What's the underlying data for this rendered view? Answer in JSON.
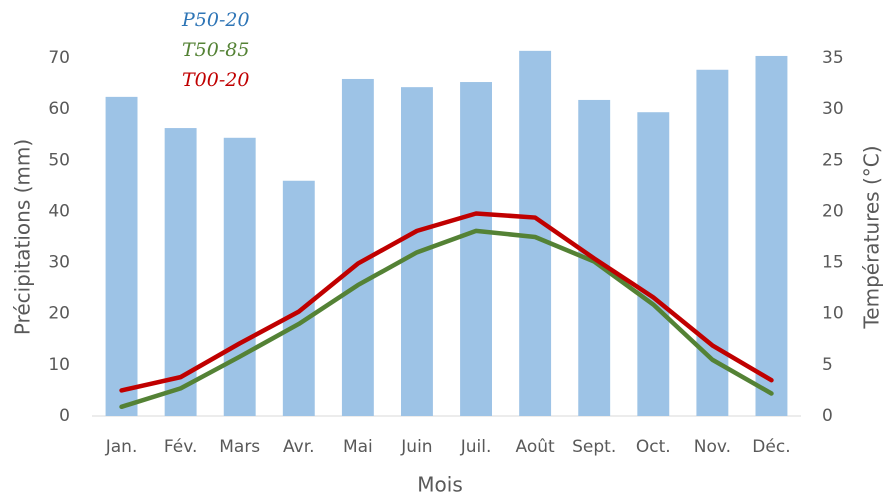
{
  "chart_data": {
    "type": "combo",
    "xlabel": "Mois",
    "ylabel": "Précipitations (mm)",
    "y2label": "Températures (°C)",
    "categories": [
      "Jan.",
      "Fév.",
      "Mars",
      "Avr.",
      "Mai",
      "Juin",
      "Juil.",
      "Août",
      "Sept.",
      "Oct.",
      "Nov.",
      "Déc."
    ],
    "series": [
      {
        "name": "P50-20",
        "type": "bar",
        "color": "#9dc3e6",
        "values": [
          62.4,
          56.3,
          54.4,
          46.0,
          65.9,
          64.3,
          65.3,
          71.4,
          61.8,
          59.4,
          67.7,
          70.4
        ]
      },
      {
        "name": "T50-85",
        "type": "line",
        "axis": "y2",
        "color": "#548235",
        "values": [
          0.9,
          2.7,
          5.8,
          9.0,
          12.8,
          16.0,
          18.1,
          17.5,
          15.1,
          10.9,
          5.5,
          2.2
        ]
      },
      {
        "name": "T00-20",
        "type": "line",
        "axis": "y2",
        "color": "#c00000",
        "values": [
          2.5,
          3.8,
          7.1,
          10.2,
          14.9,
          18.1,
          19.8,
          19.4,
          15.4,
          11.6,
          6.9,
          3.5
        ]
      }
    ],
    "legend_colors": [
      "#2e75b6",
      "#548235",
      "#c00000"
    ],
    "ylim": [
      0,
      70
    ],
    "yticks": [
      0,
      10,
      20,
      30,
      40,
      50,
      60,
      70
    ],
    "y2lim": [
      0,
      35
    ],
    "y2ticks": [
      0,
      5,
      10,
      15,
      20,
      25,
      30,
      35
    ],
    "grid": false
  }
}
